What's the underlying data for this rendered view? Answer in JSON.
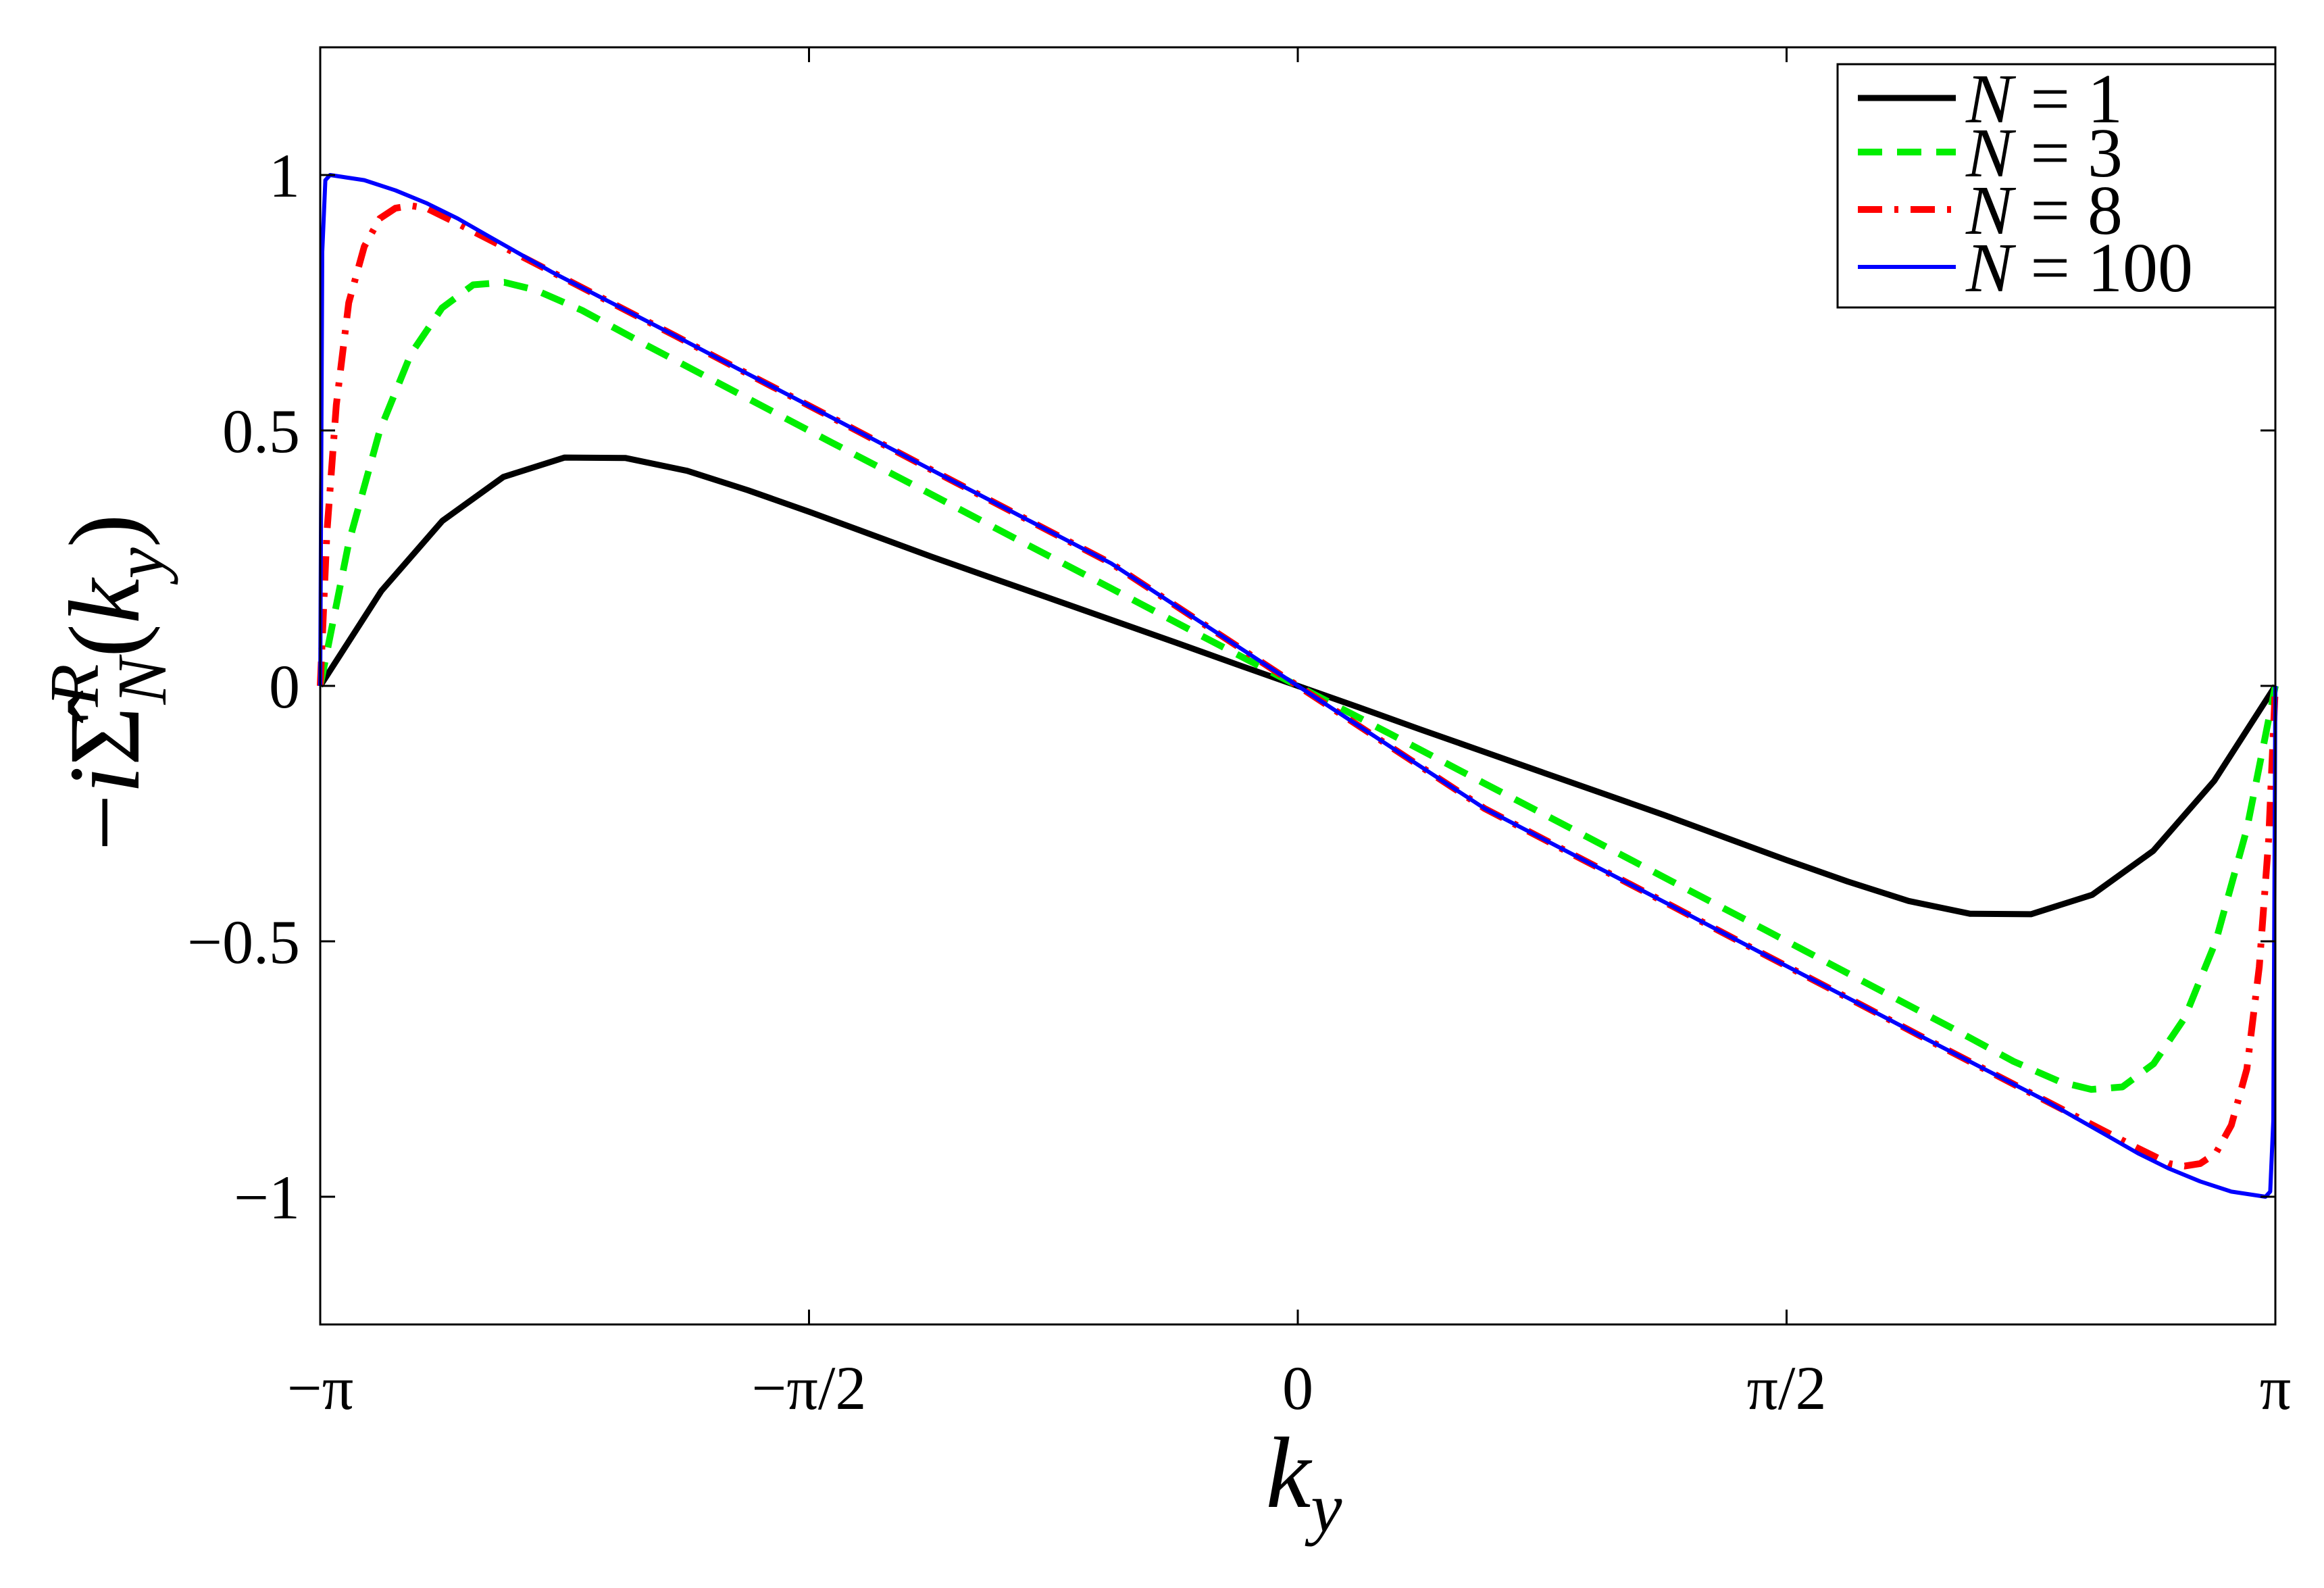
{
  "chart_data": {
    "type": "line",
    "title": "",
    "xlabel": "k_y",
    "ylabel": "-i Σ̂_N^R(k_y)",
    "xlim": [
      -3.14159,
      3.14159
    ],
    "ylim": [
      -1.25,
      1.25
    ],
    "x_ticks": [
      {
        "value": -3.14159,
        "label": "−π"
      },
      {
        "value": -1.5708,
        "label": "−π/2"
      },
      {
        "value": 0,
        "label": "0"
      },
      {
        "value": 1.5708,
        "label": "π/2"
      },
      {
        "value": 3.14159,
        "label": "π"
      }
    ],
    "y_ticks": [
      {
        "value": 1,
        "label": "1"
      },
      {
        "value": 0.5,
        "label": "0.5"
      },
      {
        "value": 0,
        "label": "0"
      },
      {
        "value": -0.5,
        "label": "−0.5"
      },
      {
        "value": -1,
        "label": "−1"
      }
    ],
    "grid": false,
    "legend_position": "top-right",
    "series": [
      {
        "name": "N = 1",
        "legend_value": "1",
        "color": "#000000",
        "style": "solid",
        "x": [
          -3.1416,
          -2.945,
          -2.749,
          -2.553,
          -2.356,
          -2.16,
          -1.963,
          -1.767,
          -1.571,
          -1.374,
          -1.178,
          -0.982,
          -0.785,
          -0.589,
          -0.393,
          -0.196,
          0,
          0.196,
          0.393,
          0.589,
          0.785,
          0.982,
          1.178,
          1.374,
          1.571,
          1.767,
          1.963,
          2.16,
          2.356,
          2.553,
          2.749,
          2.945,
          3.1416
        ],
        "values": [
          0.0,
          0.186,
          0.323,
          0.409,
          0.447,
          0.446,
          0.421,
          0.383,
          0.341,
          0.297,
          0.253,
          0.211,
          0.169,
          0.127,
          0.085,
          0.042,
          0.0,
          -0.042,
          -0.085,
          -0.127,
          -0.169,
          -0.211,
          -0.253,
          -0.297,
          -0.341,
          -0.383,
          -0.421,
          -0.446,
          -0.447,
          -0.409,
          -0.323,
          -0.186,
          0.0
        ]
      },
      {
        "name": "N = 3",
        "legend_value": "3",
        "color": "#00ee00",
        "style": "dashed",
        "x": [
          -3.1416,
          -3.05,
          -2.95,
          -2.85,
          -2.75,
          -2.65,
          -2.55,
          -2.45,
          -2.3,
          -2.1,
          -1.9,
          -1.7,
          -1.5,
          -1.2,
          -0.9,
          -0.6,
          -0.3,
          0,
          0.3,
          0.6,
          0.9,
          1.2,
          1.5,
          1.7,
          1.9,
          2.1,
          2.3,
          2.45,
          2.55,
          2.65,
          2.75,
          2.85,
          2.95,
          3.05,
          3.1416
        ],
        "values": [
          0.0,
          0.28,
          0.5,
          0.65,
          0.74,
          0.785,
          0.79,
          0.775,
          0.735,
          0.669,
          0.605,
          0.541,
          0.477,
          0.382,
          0.286,
          0.191,
          0.095,
          0.0,
          -0.095,
          -0.191,
          -0.286,
          -0.382,
          -0.477,
          -0.541,
          -0.605,
          -0.669,
          -0.735,
          -0.775,
          -0.79,
          -0.785,
          -0.74,
          -0.65,
          -0.5,
          -0.28,
          0.0
        ]
      },
      {
        "name": "N = 8",
        "legend_value": "8",
        "color": "#ff0000",
        "style": "dashdot",
        "x": [
          -3.1416,
          -3.12,
          -3.09,
          -3.05,
          -3.0,
          -2.95,
          -2.9,
          -2.85,
          -2.8,
          -2.75,
          -2.7,
          -2.6,
          -2.4,
          -2.2,
          -2.0,
          -1.8,
          -1.5,
          -1.2,
          -0.9,
          -0.6,
          -0.3,
          0,
          0.3,
          0.6,
          0.9,
          1.2,
          1.5,
          1.8,
          2.0,
          2.2,
          2.4,
          2.6,
          2.7,
          2.75,
          2.8,
          2.85,
          2.9,
          2.95,
          3.0,
          3.05,
          3.09,
          3.12,
          3.1416
        ],
        "values": [
          0.0,
          0.3,
          0.55,
          0.75,
          0.86,
          0.915,
          0.935,
          0.94,
          0.935,
          0.92,
          0.905,
          0.874,
          0.811,
          0.748,
          0.685,
          0.621,
          0.526,
          0.43,
          0.335,
          0.24,
          0.12,
          0.0,
          -0.12,
          -0.24,
          -0.335,
          -0.43,
          -0.526,
          -0.621,
          -0.685,
          -0.748,
          -0.811,
          -0.874,
          -0.905,
          -0.92,
          -0.935,
          -0.94,
          -0.935,
          -0.915,
          -0.86,
          -0.75,
          -0.55,
          -0.3,
          0.0
        ]
      },
      {
        "name": "N = 100",
        "legend_value": "100",
        "color": "#0000ff",
        "style": "solid",
        "x": [
          -3.1416,
          -3.135,
          -3.125,
          -3.11,
          -3.0,
          -2.9,
          -2.8,
          -2.7,
          -2.6,
          -2.4,
          -2.2,
          -2.0,
          -1.8,
          -1.5,
          -1.2,
          -0.9,
          -0.6,
          -0.3,
          0,
          0.3,
          0.6,
          0.9,
          1.2,
          1.5,
          1.8,
          2.0,
          2.2,
          2.4,
          2.6,
          2.7,
          2.8,
          2.9,
          3.0,
          3.11,
          3.125,
          3.135,
          3.1416
        ],
        "values": [
          0.0,
          0.85,
          0.99,
          1.0,
          0.99,
          0.97,
          0.945,
          0.915,
          0.88,
          0.811,
          0.748,
          0.685,
          0.621,
          0.526,
          0.43,
          0.335,
          0.24,
          0.12,
          0.0,
          -0.12,
          -0.24,
          -0.335,
          -0.43,
          -0.526,
          -0.621,
          -0.685,
          -0.748,
          -0.811,
          -0.88,
          -0.915,
          -0.945,
          -0.97,
          -0.99,
          -1.0,
          -0.99,
          -0.85,
          0.0
        ]
      }
    ]
  }
}
